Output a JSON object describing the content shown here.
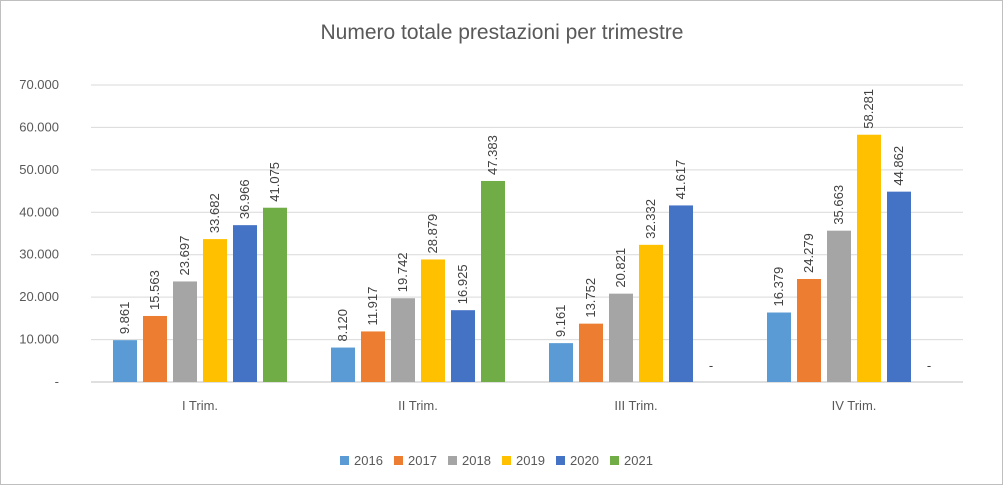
{
  "chart_data": {
    "type": "bar",
    "title": "Numero totale prestazioni per trimestre",
    "xlabel": "",
    "ylabel": "",
    "categories": [
      "I Trim.",
      "II Trim.",
      "III Trim.",
      "IV Trim."
    ],
    "ylim": [
      0,
      70000
    ],
    "yticks": [
      0,
      10000,
      20000,
      30000,
      40000,
      50000,
      60000,
      70000
    ],
    "ytick_labels": [
      "-",
      "10.000",
      "20.000",
      "30.000",
      "40.000",
      "50.000",
      "60.000",
      "70.000"
    ],
    "grid": true,
    "legend_position": "bottom",
    "series": [
      {
        "name": "2016",
        "color": "#5b9bd5",
        "values": [
          9861,
          8120,
          9161,
          16379
        ],
        "labels": [
          "9.861",
          "8.120",
          "9.161",
          "16.379"
        ]
      },
      {
        "name": "2017",
        "color": "#ed7d31",
        "values": [
          15563,
          11917,
          13752,
          24279
        ],
        "labels": [
          "15.563",
          "11.917",
          "13.752",
          "24.279"
        ]
      },
      {
        "name": "2018",
        "color": "#a5a5a5",
        "values": [
          23697,
          19742,
          20821,
          35663
        ],
        "labels": [
          "23.697",
          "19.742",
          "20.821",
          "35.663"
        ]
      },
      {
        "name": "2019",
        "color": "#ffc000",
        "values": [
          33682,
          28879,
          32332,
          58281
        ],
        "labels": [
          "33.682",
          "28.879",
          "32.332",
          "58.281"
        ]
      },
      {
        "name": "2020",
        "color": "#4472c4",
        "values": [
          36966,
          16925,
          41617,
          44862
        ],
        "labels": [
          "36.966",
          "16.925",
          "41.617",
          "44.862"
        ]
      },
      {
        "name": "2021",
        "color": "#70ad47",
        "values": [
          41075,
          47383,
          0,
          0
        ],
        "labels": [
          "41.075",
          "47.383",
          "-",
          "-"
        ]
      }
    ]
  }
}
